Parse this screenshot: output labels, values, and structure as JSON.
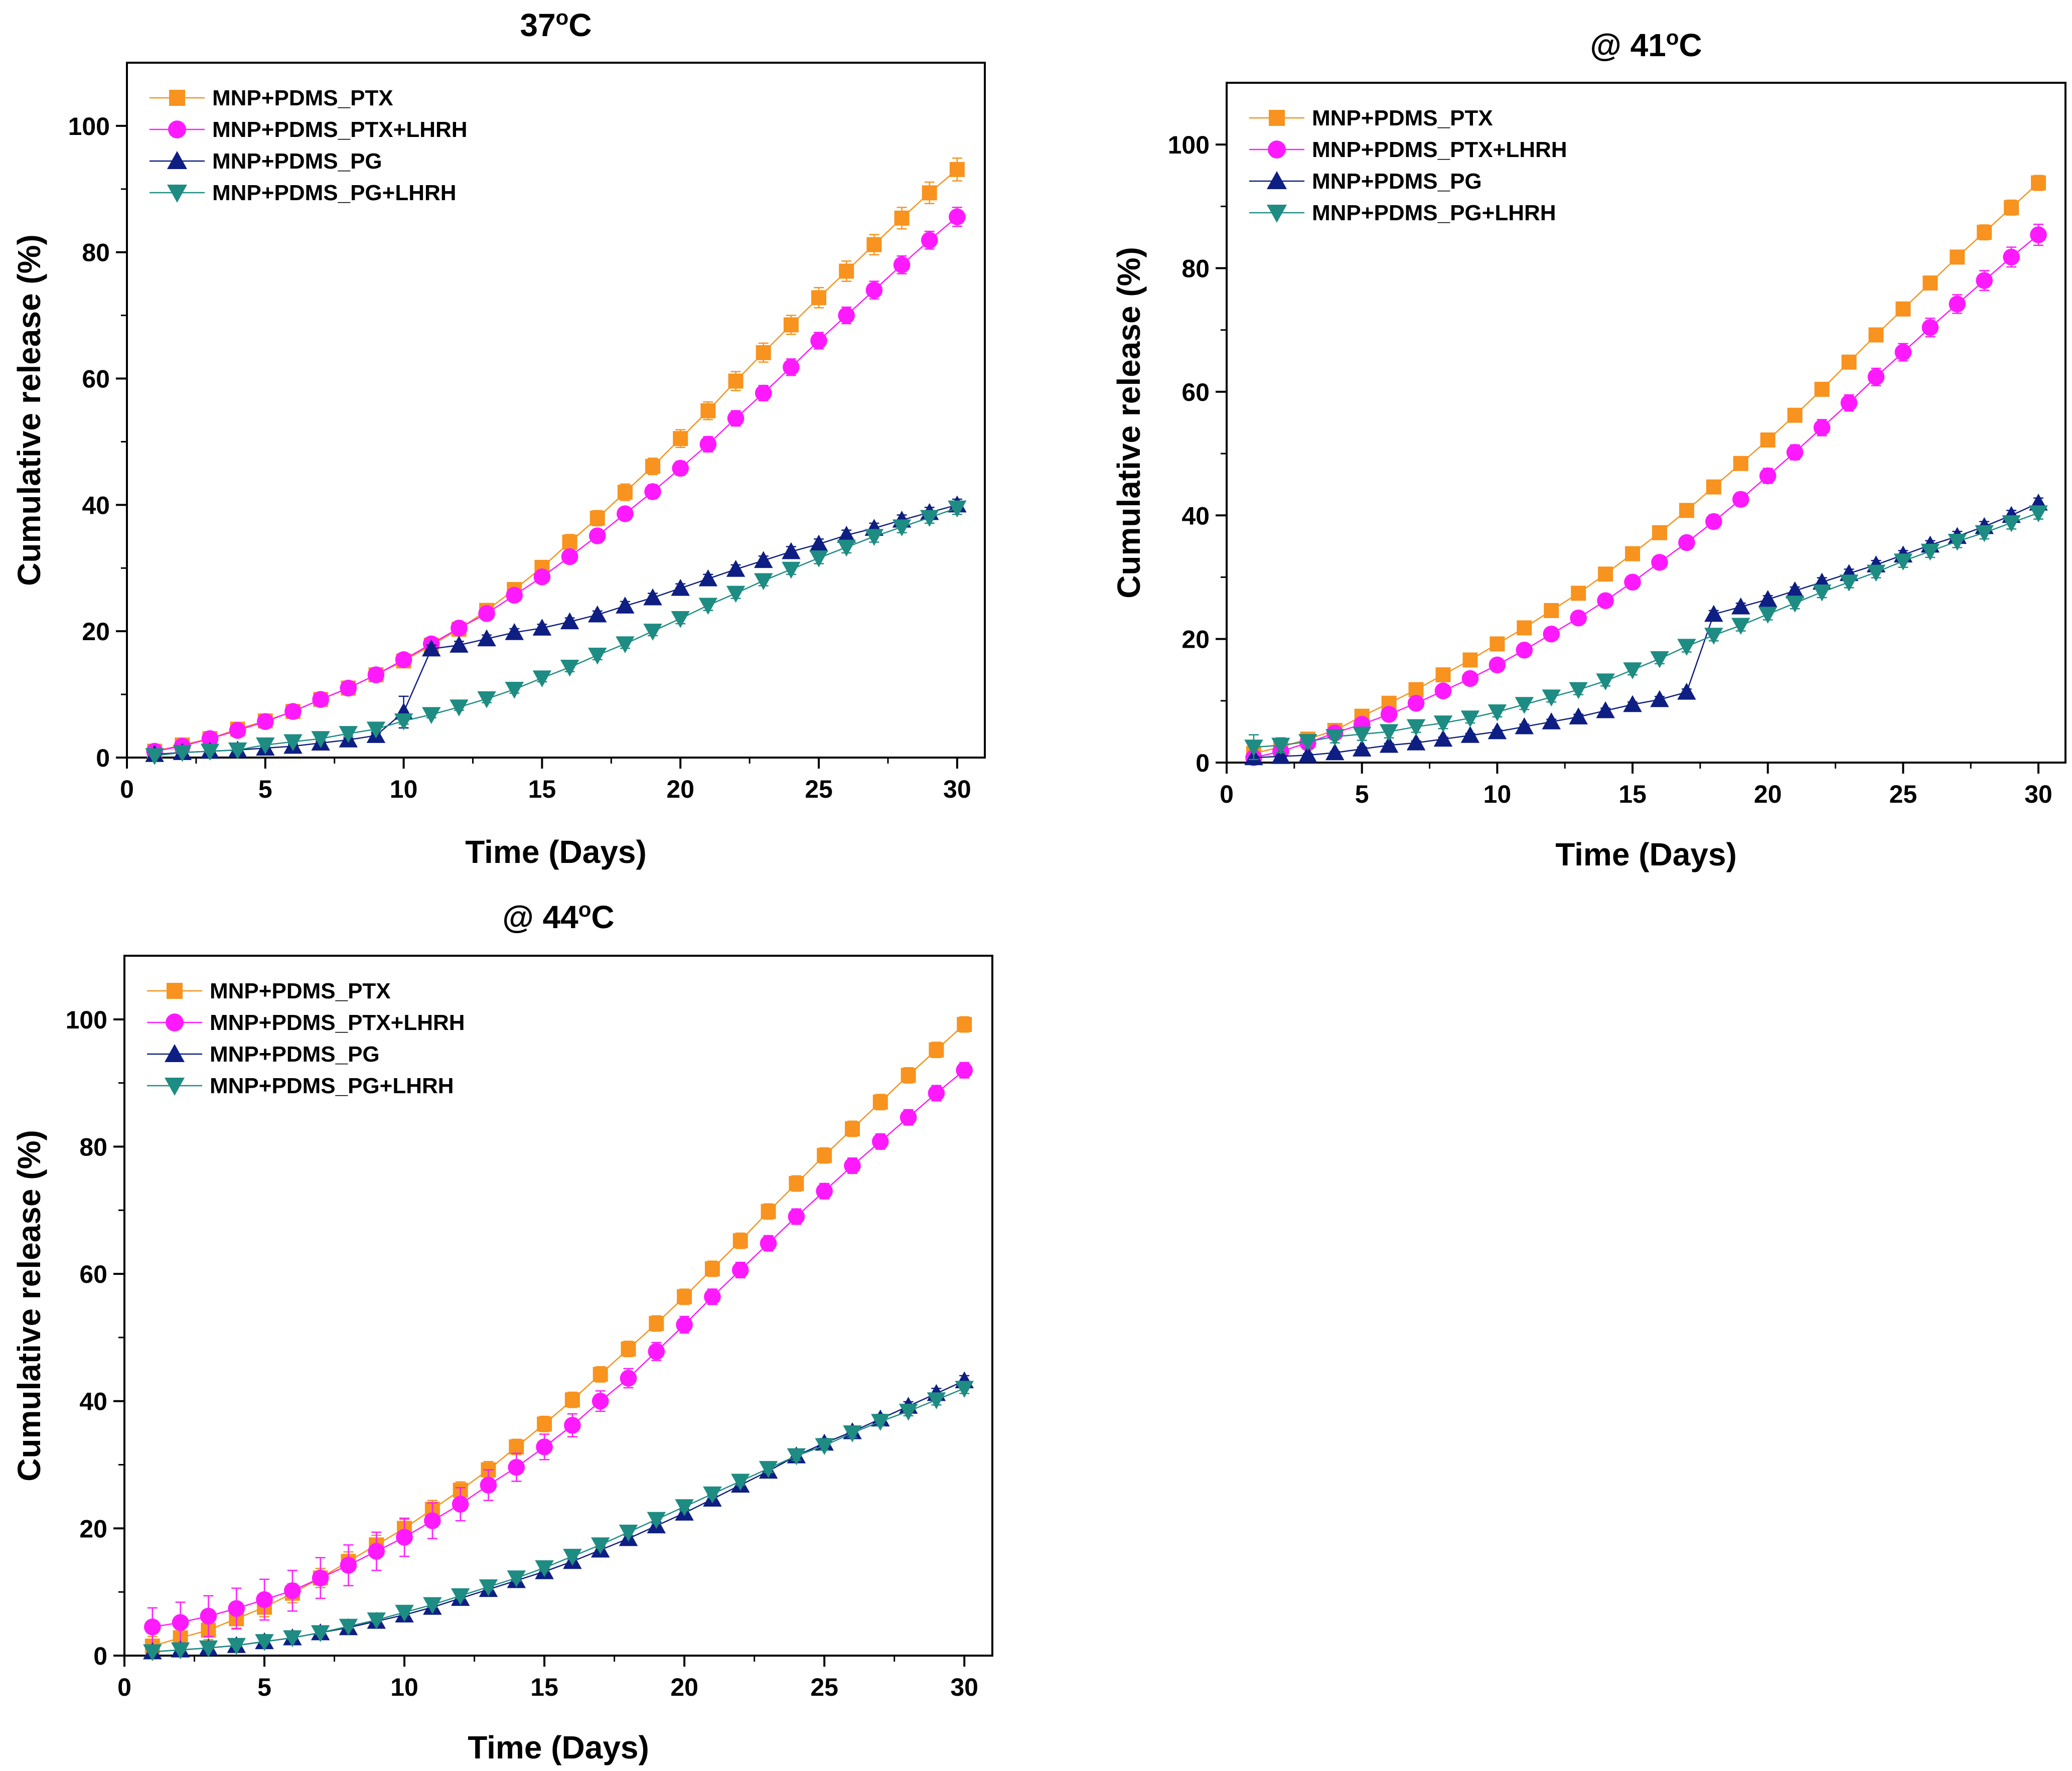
{
  "figure": {
    "description_free": true
  },
  "colors": {
    "ptx": "#f7931e",
    "ptx_lhrh": "#ff19ff",
    "pg": "#0e1e82",
    "pg_lhrh": "#1e8c82"
  },
  "chart_data": [
    {
      "type": "line",
      "title": "37",
      "title_sup": "o",
      "title_suffix": "C",
      "xlabel": "Time (Days)",
      "ylabel": "Cumulative release (%)",
      "xlim": [
        0,
        31
      ],
      "ylim": [
        0,
        110
      ],
      "xticks": [
        0,
        5,
        10,
        15,
        20,
        25,
        30
      ],
      "yticks": [
        0,
        20,
        40,
        60,
        80,
        100
      ],
      "legend_position": "top-left",
      "x": [
        1,
        2,
        3,
        4,
        5,
        6,
        7,
        8,
        9,
        10,
        11,
        12,
        13,
        14,
        15,
        16,
        17,
        18,
        19,
        20,
        21,
        22,
        23,
        24,
        25,
        26,
        27,
        28,
        29,
        30
      ],
      "series": [
        {
          "name": "MNP+PDMS_PTX",
          "marker": "square",
          "color_key": "ptx",
          "values": [
            1.0,
            2.0,
            3.0,
            4.5,
            5.8,
            7.3,
            9.2,
            11.0,
            13.1,
            15.3,
            17.8,
            20.3,
            23.3,
            26.6,
            30.1,
            34.1,
            37.9,
            42.0,
            46.1,
            50.5,
            54.9,
            59.6,
            64.1,
            68.5,
            72.8,
            77.0,
            81.2,
            85.4,
            89.4,
            93.1
          ],
          "errors": [
            0.3,
            0.3,
            0.3,
            0.4,
            0.4,
            0.5,
            0.5,
            0.6,
            0.6,
            0.7,
            0.8,
            0.8,
            0.9,
            1.0,
            1.1,
            1.2,
            1.2,
            1.3,
            1.3,
            1.4,
            1.4,
            1.5,
            1.5,
            1.5,
            1.6,
            1.6,
            1.6,
            1.7,
            1.7,
            1.8
          ]
        },
        {
          "name": "MNP+PDMS_PTX+LHRH",
          "marker": "circle",
          "color_key": "ptx_lhrh",
          "values": [
            1.0,
            1.8,
            3.0,
            4.3,
            5.7,
            7.3,
            9.2,
            11.0,
            13.1,
            15.5,
            18.0,
            20.5,
            22.8,
            25.7,
            28.6,
            31.8,
            35.1,
            38.6,
            42.1,
            45.8,
            49.6,
            53.7,
            57.7,
            61.8,
            66.0,
            70.0,
            74.0,
            78.0,
            81.9,
            85.6
          ],
          "errors": [
            0.3,
            0.3,
            0.3,
            0.4,
            0.4,
            0.5,
            0.5,
            0.5,
            0.6,
            0.6,
            0.7,
            0.7,
            0.8,
            0.8,
            0.9,
            0.9,
            1.0,
            1.0,
            1.1,
            1.1,
            1.2,
            1.2,
            1.2,
            1.3,
            1.3,
            1.3,
            1.4,
            1.4,
            1.4,
            1.5
          ]
        },
        {
          "name": "MNP+PDMS_PG",
          "marker": "triangle-up",
          "color_key": "pg",
          "values": [
            0.5,
            0.8,
            1.0,
            1.2,
            1.5,
            1.8,
            2.3,
            2.8,
            3.5,
            7.2,
            17.2,
            17.8,
            18.8,
            19.8,
            20.5,
            21.5,
            22.6,
            24.0,
            25.3,
            26.8,
            28.3,
            29.8,
            31.2,
            32.6,
            33.8,
            35.2,
            36.3,
            37.6,
            38.8,
            40.0
          ],
          "errors": [
            0.2,
            0.2,
            0.2,
            0.2,
            0.3,
            0.3,
            0.3,
            0.3,
            0.4,
            2.5,
            0.6,
            0.6,
            0.6,
            0.6,
            0.6,
            0.6,
            0.6,
            0.7,
            0.7,
            0.7,
            0.7,
            0.7,
            0.7,
            0.8,
            0.8,
            0.8,
            0.8,
            0.8,
            0.8,
            0.9
          ]
        },
        {
          "name": "MNP+PDMS_PG+LHRH",
          "marker": "triangle-down",
          "color_key": "pg_lhrh",
          "values": [
            0.3,
            0.8,
            1.0,
            1.2,
            2.0,
            2.5,
            3.0,
            3.8,
            4.5,
            5.8,
            6.8,
            8.0,
            9.3,
            10.8,
            12.6,
            14.3,
            16.2,
            18.0,
            20.0,
            22.0,
            24.1,
            26.0,
            28.0,
            29.8,
            31.6,
            33.3,
            35.0,
            36.5,
            38.0,
            39.5
          ],
          "errors": [
            0.2,
            0.2,
            0.2,
            0.3,
            0.3,
            0.3,
            0.3,
            0.4,
            0.4,
            0.5,
            0.5,
            0.5,
            0.6,
            0.6,
            0.6,
            0.7,
            0.7,
            0.7,
            0.7,
            0.8,
            0.8,
            0.8,
            0.8,
            0.8,
            0.9,
            0.9,
            0.9,
            0.9,
            0.9,
            1.0
          ]
        }
      ]
    },
    {
      "type": "line",
      "title": "@ 41",
      "title_sup": "o",
      "title_suffix": "C",
      "xlabel": "Time (Days)",
      "ylabel": "Cumulative release (%)",
      "xlim": [
        0,
        31
      ],
      "ylim": [
        0,
        110
      ],
      "xticks": [
        0,
        5,
        10,
        15,
        20,
        25,
        30
      ],
      "yticks": [
        0,
        20,
        40,
        60,
        80,
        100
      ],
      "legend_position": "top-left",
      "x": [
        1,
        2,
        3,
        4,
        5,
        6,
        7,
        8,
        9,
        10,
        11,
        12,
        13,
        14,
        15,
        16,
        17,
        18,
        19,
        20,
        21,
        22,
        23,
        24,
        25,
        26,
        27,
        28,
        29,
        30
      ],
      "series": [
        {
          "name": "MNP+PDMS_PTX",
          "marker": "square",
          "color_key": "ptx",
          "values": [
            1.5,
            2.5,
            3.8,
            5.2,
            7.5,
            9.6,
            11.8,
            14.2,
            16.6,
            19.2,
            21.8,
            24.6,
            27.4,
            30.5,
            33.8,
            37.2,
            40.8,
            44.6,
            48.4,
            52.2,
            56.2,
            60.4,
            64.8,
            69.2,
            73.4,
            77.6,
            81.8,
            85.8,
            89.8,
            93.8
          ],
          "errors": [
            0.3,
            0.3,
            0.3,
            0.4,
            0.4,
            0.4,
            0.5,
            0.5,
            0.5,
            0.6,
            0.6,
            0.6,
            0.7,
            0.7,
            0.7,
            0.8,
            0.8,
            0.8,
            0.9,
            0.9,
            0.9,
            1.0,
            1.0,
            1.0,
            1.1,
            1.1,
            1.1,
            1.2,
            1.2,
            1.2
          ]
        },
        {
          "name": "MNP+PDMS_PTX+LHRH",
          "marker": "circle",
          "color_key": "ptx_lhrh",
          "values": [
            0.8,
            1.8,
            3.2,
            4.8,
            6.2,
            7.8,
            9.6,
            11.6,
            13.6,
            15.8,
            18.2,
            20.8,
            23.4,
            26.2,
            29.2,
            32.4,
            35.6,
            39.0,
            42.6,
            46.4,
            50.2,
            54.2,
            58.2,
            62.4,
            66.4,
            70.4,
            74.2,
            78.0,
            81.8,
            85.4
          ],
          "errors": [
            0.3,
            0.3,
            0.3,
            0.4,
            0.4,
            0.5,
            0.5,
            0.6,
            0.6,
            0.7,
            0.7,
            0.8,
            0.8,
            0.9,
            0.9,
            1.0,
            1.0,
            1.1,
            1.1,
            1.2,
            1.2,
            1.3,
            1.3,
            1.4,
            1.4,
            1.5,
            1.5,
            1.6,
            1.6,
            1.7
          ]
        },
        {
          "name": "MNP+PDMS_PG",
          "marker": "triangle-up",
          "color_key": "pg",
          "values": [
            0.8,
            1.0,
            1.2,
            1.6,
            2.2,
            2.8,
            3.2,
            3.8,
            4.4,
            5.0,
            5.8,
            6.6,
            7.4,
            8.4,
            9.4,
            10.2,
            11.4,
            24.0,
            25.2,
            26.4,
            27.8,
            29.2,
            30.6,
            32.0,
            33.6,
            35.2,
            36.6,
            38.2,
            40.0,
            42.0
          ],
          "errors": [
            0.2,
            0.2,
            0.2,
            0.2,
            0.3,
            0.3,
            0.3,
            0.3,
            0.3,
            0.3,
            0.4,
            0.4,
            0.4,
            0.4,
            0.4,
            0.5,
            0.5,
            0.6,
            0.6,
            0.6,
            0.6,
            0.7,
            0.7,
            0.7,
            0.7,
            0.7,
            0.8,
            0.8,
            0.8,
            0.8
          ]
        },
        {
          "name": "MNP+PDMS_PG+LHRH",
          "marker": "triangle-down",
          "color_key": "pg_lhrh",
          "values": [
            2.5,
            2.8,
            3.4,
            4.2,
            4.6,
            5.0,
            5.8,
            6.4,
            7.2,
            8.2,
            9.4,
            10.6,
            11.8,
            13.2,
            15.0,
            16.8,
            18.8,
            20.6,
            22.2,
            24.0,
            25.8,
            27.6,
            29.2,
            30.8,
            32.6,
            34.2,
            35.8,
            37.2,
            38.8,
            40.4
          ],
          "errors": [
            2.0,
            1.2,
            1.0,
            1.0,
            1.0,
            1.0,
            0.9,
            0.9,
            0.8,
            0.8,
            0.8,
            0.8,
            0.8,
            0.8,
            0.8,
            0.8,
            0.9,
            0.9,
            0.9,
            0.9,
            0.9,
            0.9,
            0.9,
            0.9,
            1.0,
            1.0,
            1.0,
            1.0,
            1.0,
            1.0
          ]
        }
      ]
    },
    {
      "type": "line",
      "title": "@ 44",
      "title_sup": "o",
      "title_suffix": "C",
      "xlabel": "Time (Days)",
      "ylabel": "Cumulative release (%)",
      "xlim": [
        0,
        31
      ],
      "ylim": [
        0,
        110
      ],
      "xticks": [
        0,
        5,
        10,
        15,
        20,
        25,
        30
      ],
      "yticks": [
        0,
        20,
        40,
        60,
        80,
        100
      ],
      "legend_position": "top-left",
      "x": [
        1,
        2,
        3,
        4,
        5,
        6,
        7,
        8,
        9,
        10,
        11,
        12,
        13,
        14,
        15,
        16,
        17,
        18,
        19,
        20,
        21,
        22,
        23,
        24,
        25,
        26,
        27,
        28,
        29,
        30
      ],
      "series": [
        {
          "name": "MNP+PDMS_PTX",
          "marker": "square",
          "color_key": "ptx",
          "values": [
            1.5,
            2.8,
            4.0,
            5.8,
            7.6,
            9.8,
            12.2,
            14.8,
            17.4,
            20.0,
            23.0,
            26.0,
            29.2,
            32.8,
            36.4,
            40.2,
            44.2,
            48.2,
            52.2,
            56.4,
            60.8,
            65.2,
            69.8,
            74.2,
            78.6,
            82.8,
            87.0,
            91.2,
            95.2,
            99.2
          ],
          "errors": [
            1.5,
            1.5,
            1.5,
            1.5,
            1.5,
            1.5,
            1.5,
            1.5,
            1.5,
            1.4,
            1.4,
            1.3,
            1.3,
            1.2,
            1.2,
            1.2,
            1.2,
            1.2,
            1.2,
            1.2,
            1.2,
            1.2,
            1.2,
            1.2,
            1.2,
            1.2,
            1.2,
            1.2,
            1.2,
            1.2
          ]
        },
        {
          "name": "MNP+PDMS_PTX+LHRH",
          "marker": "circle",
          "color_key": "ptx_lhrh",
          "values": [
            4.5,
            5.2,
            6.2,
            7.4,
            8.8,
            10.2,
            12.2,
            14.2,
            16.4,
            18.6,
            21.2,
            23.8,
            26.8,
            29.6,
            32.8,
            36.2,
            40.0,
            43.6,
            47.8,
            52.0,
            56.4,
            60.6,
            64.8,
            69.0,
            73.0,
            77.0,
            80.8,
            84.6,
            88.4,
            92.0
          ],
          "errors": [
            3.0,
            3.2,
            3.2,
            3.2,
            3.2,
            3.2,
            3.2,
            3.2,
            3.0,
            3.0,
            2.8,
            2.6,
            2.4,
            2.2,
            2.0,
            1.8,
            1.6,
            1.5,
            1.4,
            1.3,
            1.2,
            1.2,
            1.2,
            1.2,
            1.2,
            1.2,
            1.2,
            1.2,
            1.2,
            1.2
          ]
        },
        {
          "name": "MNP+PDMS_PG",
          "marker": "triangle-up",
          "color_key": "pg",
          "values": [
            0.6,
            0.9,
            1.2,
            1.6,
            2.2,
            2.8,
            3.6,
            4.4,
            5.4,
            6.4,
            7.6,
            9.0,
            10.4,
            11.8,
            13.2,
            14.8,
            16.6,
            18.4,
            20.4,
            22.4,
            24.6,
            26.8,
            29.0,
            31.4,
            33.4,
            35.2,
            37.2,
            39.2,
            41.2,
            43.2
          ],
          "errors": [
            0.2,
            0.2,
            0.2,
            0.2,
            0.3,
            0.3,
            0.3,
            0.3,
            0.3,
            0.4,
            0.4,
            0.4,
            0.4,
            0.5,
            0.5,
            0.5,
            0.5,
            0.5,
            0.6,
            0.6,
            0.6,
            0.6,
            0.6,
            0.7,
            0.7,
            0.7,
            0.7,
            0.7,
            0.8,
            0.8
          ]
        },
        {
          "name": "MNP+PDMS_PG+LHRH",
          "marker": "triangle-down",
          "color_key": "pg_lhrh",
          "values": [
            0.6,
            0.9,
            1.2,
            1.6,
            2.2,
            2.8,
            3.6,
            4.6,
            5.6,
            6.8,
            8.0,
            9.4,
            10.8,
            12.2,
            13.8,
            15.6,
            17.4,
            19.4,
            21.4,
            23.4,
            25.4,
            27.4,
            29.4,
            31.4,
            33.0,
            35.0,
            36.8,
            38.4,
            40.2,
            42.0
          ],
          "errors": [
            0.2,
            0.2,
            0.2,
            0.2,
            0.3,
            0.3,
            0.3,
            0.3,
            0.3,
            0.4,
            0.4,
            0.4,
            0.4,
            0.5,
            0.5,
            0.5,
            0.5,
            0.5,
            0.6,
            0.6,
            0.6,
            0.6,
            0.6,
            0.7,
            0.7,
            0.7,
            0.7,
            0.7,
            0.8,
            0.8
          ]
        }
      ]
    }
  ]
}
